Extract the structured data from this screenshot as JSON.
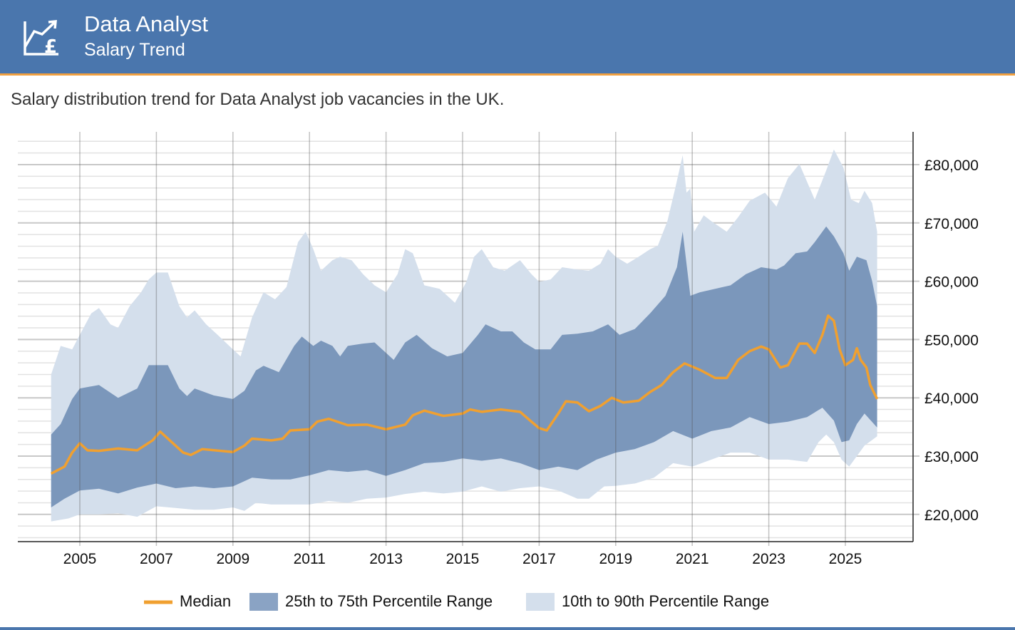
{
  "header": {
    "title": "Data Analyst",
    "subtitle": "Salary Trend",
    "icon": "chart-pound-icon"
  },
  "description": "Salary distribution trend for Data Analyst job vacancies in the UK.",
  "colors": {
    "header": "#4a76ad",
    "accent": "#f0a040",
    "median": "#f0a030",
    "iqr": "#7b97bb",
    "p10_90": "#d4dfec"
  },
  "chart_data": {
    "type": "area",
    "title": "",
    "xlabel": "",
    "ylabel": "",
    "xlim": [
      2003.75,
      2026.75
    ],
    "ylim": [
      15300,
      85600
    ],
    "grid": true,
    "x_ticks": [
      "2005",
      "2007",
      "2009",
      "2011",
      "2013",
      "2015",
      "2017",
      "2019",
      "2021",
      "2023",
      "2025"
    ],
    "y_ticks": [
      "£20,000",
      "£30,000",
      "£40,000",
      "£50,000",
      "£60,000",
      "£70,000",
      "£80,000"
    ],
    "legend_position": "bottom",
    "legend": [
      "Median",
      "25th to 75th Percentile Range",
      "10th to 90th Percentile Range"
    ],
    "series": {
      "median": [
        [
          2004.25,
          27000
        ],
        [
          2004.6,
          28200
        ],
        [
          2004.8,
          30600
        ],
        [
          2005,
          32200
        ],
        [
          2005.2,
          31000
        ],
        [
          2005.5,
          30900
        ],
        [
          2006,
          31300
        ],
        [
          2006.5,
          31000
        ],
        [
          2006.9,
          32700
        ],
        [
          2007.1,
          34200
        ],
        [
          2007.3,
          33000
        ],
        [
          2007.7,
          30600
        ],
        [
          2007.9,
          30200
        ],
        [
          2008.2,
          31200
        ],
        [
          2009,
          30700
        ],
        [
          2009.3,
          31800
        ],
        [
          2009.5,
          33000
        ],
        [
          2010,
          32700
        ],
        [
          2010.3,
          33000
        ],
        [
          2010.5,
          34400
        ],
        [
          2011,
          34600
        ],
        [
          2011.2,
          35900
        ],
        [
          2011.5,
          36400
        ],
        [
          2012,
          35300
        ],
        [
          2012.5,
          35400
        ],
        [
          2013,
          34600
        ],
        [
          2013.5,
          35400
        ],
        [
          2013.7,
          37000
        ],
        [
          2014,
          37800
        ],
        [
          2014.5,
          36900
        ],
        [
          2015,
          37300
        ],
        [
          2015.2,
          38000
        ],
        [
          2015.5,
          37600
        ],
        [
          2016,
          38000
        ],
        [
          2016.5,
          37600
        ],
        [
          2016.8,
          35900
        ],
        [
          2017,
          34800
        ],
        [
          2017.2,
          34400
        ],
        [
          2017.5,
          37300
        ],
        [
          2017.7,
          39400
        ],
        [
          2018,
          39200
        ],
        [
          2018.3,
          37700
        ],
        [
          2018.6,
          38600
        ],
        [
          2018.9,
          40000
        ],
        [
          2019.2,
          39200
        ],
        [
          2019.6,
          39500
        ],
        [
          2019.9,
          41000
        ],
        [
          2020.2,
          42200
        ],
        [
          2020.5,
          44400
        ],
        [
          2020.8,
          45900
        ],
        [
          2021.2,
          44800
        ],
        [
          2021.6,
          43400
        ],
        [
          2021.9,
          43400
        ],
        [
          2022.2,
          46500
        ],
        [
          2022.5,
          48000
        ],
        [
          2022.8,
          48800
        ],
        [
          2023,
          48300
        ],
        [
          2023.3,
          45200
        ],
        [
          2023.5,
          45600
        ],
        [
          2023.8,
          49300
        ],
        [
          2024,
          49300
        ],
        [
          2024.2,
          47700
        ],
        [
          2024.4,
          50800
        ],
        [
          2024.55,
          54100
        ],
        [
          2024.7,
          53200
        ],
        [
          2024.85,
          48300
        ],
        [
          2025,
          45600
        ],
        [
          2025.2,
          46500
        ],
        [
          2025.3,
          48500
        ],
        [
          2025.4,
          46500
        ],
        [
          2025.55,
          45200
        ],
        [
          2025.65,
          42200
        ],
        [
          2025.83,
          39800
        ]
      ],
      "p25": [
        [
          2004.25,
          21200
        ],
        [
          2004.6,
          22700
        ],
        [
          2005,
          24100
        ],
        [
          2005.5,
          24400
        ],
        [
          2006,
          23600
        ],
        [
          2006.5,
          24600
        ],
        [
          2007,
          25300
        ],
        [
          2007.5,
          24500
        ],
        [
          2008,
          24800
        ],
        [
          2008.5,
          24500
        ],
        [
          2009,
          24800
        ],
        [
          2009.5,
          26300
        ],
        [
          2010,
          26000
        ],
        [
          2010.5,
          26000
        ],
        [
          2011,
          26700
        ],
        [
          2011.5,
          27600
        ],
        [
          2012,
          27300
        ],
        [
          2012.5,
          27600
        ],
        [
          2013,
          26600
        ],
        [
          2013.5,
          27600
        ],
        [
          2014,
          28800
        ],
        [
          2014.5,
          29000
        ],
        [
          2015,
          29600
        ],
        [
          2015.5,
          29200
        ],
        [
          2016,
          29600
        ],
        [
          2016.5,
          28800
        ],
        [
          2017,
          27600
        ],
        [
          2017.5,
          28200
        ],
        [
          2018,
          27600
        ],
        [
          2018.5,
          29400
        ],
        [
          2019,
          30600
        ],
        [
          2019.5,
          31200
        ],
        [
          2020,
          32400
        ],
        [
          2020.5,
          34300
        ],
        [
          2021,
          33000
        ],
        [
          2021.5,
          34300
        ],
        [
          2022,
          34900
        ],
        [
          2022.5,
          36700
        ],
        [
          2023,
          35500
        ],
        [
          2023.5,
          35900
        ],
        [
          2024,
          36700
        ],
        [
          2024.4,
          38300
        ],
        [
          2024.7,
          36100
        ],
        [
          2024.9,
          32400
        ],
        [
          2025.1,
          32700
        ],
        [
          2025.3,
          35500
        ],
        [
          2025.5,
          37300
        ],
        [
          2025.83,
          34900
        ]
      ],
      "p75": [
        [
          2004.25,
          33700
        ],
        [
          2004.5,
          35500
        ],
        [
          2004.8,
          39800
        ],
        [
          2005,
          41600
        ],
        [
          2005.5,
          42200
        ],
        [
          2006,
          40000
        ],
        [
          2006.5,
          41600
        ],
        [
          2006.8,
          45600
        ],
        [
          2007,
          45600
        ],
        [
          2007.3,
          45600
        ],
        [
          2007.6,
          41600
        ],
        [
          2007.8,
          40300
        ],
        [
          2008,
          41600
        ],
        [
          2008.5,
          40400
        ],
        [
          2009,
          39800
        ],
        [
          2009.3,
          41200
        ],
        [
          2009.6,
          44700
        ],
        [
          2009.8,
          45500
        ],
        [
          2010.2,
          44400
        ],
        [
          2010.6,
          48900
        ],
        [
          2010.8,
          50500
        ],
        [
          2011.1,
          48900
        ],
        [
          2011.3,
          49800
        ],
        [
          2011.6,
          48900
        ],
        [
          2011.8,
          47100
        ],
        [
          2012,
          48900
        ],
        [
          2012.4,
          49300
        ],
        [
          2012.7,
          49500
        ],
        [
          2013.2,
          46500
        ],
        [
          2013.5,
          49500
        ],
        [
          2013.8,
          50800
        ],
        [
          2014.2,
          48500
        ],
        [
          2014.6,
          47100
        ],
        [
          2015,
          47700
        ],
        [
          2015.4,
          50800
        ],
        [
          2015.6,
          52600
        ],
        [
          2016,
          51400
        ],
        [
          2016.3,
          51400
        ],
        [
          2016.6,
          49500
        ],
        [
          2016.9,
          48300
        ],
        [
          2017.3,
          48300
        ],
        [
          2017.6,
          50800
        ],
        [
          2018,
          51000
        ],
        [
          2018.4,
          51400
        ],
        [
          2018.8,
          52600
        ],
        [
          2019.1,
          50800
        ],
        [
          2019.5,
          51800
        ],
        [
          2019.9,
          54500
        ],
        [
          2020.3,
          57500
        ],
        [
          2020.6,
          62400
        ],
        [
          2020.75,
          68500
        ],
        [
          2020.95,
          57500
        ],
        [
          2021.2,
          58100
        ],
        [
          2021.6,
          58700
        ],
        [
          2022,
          59300
        ],
        [
          2022.4,
          61200
        ],
        [
          2022.8,
          62400
        ],
        [
          2023.2,
          62000
        ],
        [
          2023.4,
          62700
        ],
        [
          2023.7,
          64800
        ],
        [
          2024,
          65100
        ],
        [
          2024.2,
          66700
        ],
        [
          2024.5,
          69400
        ],
        [
          2024.7,
          67700
        ],
        [
          2024.95,
          64800
        ],
        [
          2025.1,
          61800
        ],
        [
          2025.3,
          64200
        ],
        [
          2025.55,
          63600
        ],
        [
          2025.7,
          60000
        ],
        [
          2025.83,
          55700
        ]
      ],
      "p10": [
        [
          2004.25,
          18800
        ],
        [
          2004.7,
          19300
        ],
        [
          2005,
          20000
        ],
        [
          2005.5,
          20000
        ],
        [
          2006,
          20200
        ],
        [
          2006.5,
          19600
        ],
        [
          2007,
          21400
        ],
        [
          2007.5,
          21100
        ],
        [
          2008,
          20800
        ],
        [
          2008.5,
          20800
        ],
        [
          2009,
          21200
        ],
        [
          2009.3,
          20600
        ],
        [
          2009.6,
          22000
        ],
        [
          2010,
          21700
        ],
        [
          2010.5,
          21700
        ],
        [
          2011,
          21700
        ],
        [
          2011.5,
          22300
        ],
        [
          2012,
          22000
        ],
        [
          2012.5,
          22700
        ],
        [
          2013,
          22900
        ],
        [
          2013.5,
          23500
        ],
        [
          2014,
          23900
        ],
        [
          2014.5,
          23600
        ],
        [
          2015,
          23900
        ],
        [
          2015.5,
          24800
        ],
        [
          2016,
          23900
        ],
        [
          2016.5,
          24500
        ],
        [
          2017,
          24800
        ],
        [
          2017.5,
          24100
        ],
        [
          2018,
          22700
        ],
        [
          2018.3,
          22700
        ],
        [
          2018.7,
          24800
        ],
        [
          2019,
          24900
        ],
        [
          2019.5,
          25300
        ],
        [
          2020,
          26300
        ],
        [
          2020.5,
          28800
        ],
        [
          2021,
          28200
        ],
        [
          2021.5,
          29400
        ],
        [
          2022,
          30600
        ],
        [
          2022.5,
          30600
        ],
        [
          2023,
          29400
        ],
        [
          2023.5,
          29400
        ],
        [
          2024,
          29000
        ],
        [
          2024.3,
          32400
        ],
        [
          2024.5,
          33700
        ],
        [
          2024.7,
          32400
        ],
        [
          2024.9,
          29400
        ],
        [
          2025.1,
          28200
        ],
        [
          2025.3,
          30000
        ],
        [
          2025.5,
          31800
        ],
        [
          2025.83,
          33400
        ]
      ],
      "p90": [
        [
          2004.25,
          44000
        ],
        [
          2004.5,
          48900
        ],
        [
          2004.8,
          48300
        ],
        [
          2005,
          50800
        ],
        [
          2005.3,
          54500
        ],
        [
          2005.5,
          55400
        ],
        [
          2005.8,
          52600
        ],
        [
          2006,
          52000
        ],
        [
          2006.3,
          55700
        ],
        [
          2006.6,
          58100
        ],
        [
          2006.8,
          60300
        ],
        [
          2007,
          61500
        ],
        [
          2007.3,
          61500
        ],
        [
          2007.6,
          55700
        ],
        [
          2007.8,
          53800
        ],
        [
          2008,
          55000
        ],
        [
          2008.3,
          52600
        ],
        [
          2008.6,
          50800
        ],
        [
          2009,
          48300
        ],
        [
          2009.2,
          47100
        ],
        [
          2009.5,
          53800
        ],
        [
          2009.8,
          58100
        ],
        [
          2010.1,
          56900
        ],
        [
          2010.4,
          59000
        ],
        [
          2010.7,
          66700
        ],
        [
          2010.9,
          68500
        ],
        [
          2011.1,
          65500
        ],
        [
          2011.3,
          61800
        ],
        [
          2011.6,
          63600
        ],
        [
          2011.8,
          64200
        ],
        [
          2012.1,
          63600
        ],
        [
          2012.4,
          61200
        ],
        [
          2012.7,
          59300
        ],
        [
          2013,
          58100
        ],
        [
          2013.3,
          61200
        ],
        [
          2013.5,
          65500
        ],
        [
          2013.7,
          64800
        ],
        [
          2014,
          59300
        ],
        [
          2014.4,
          58700
        ],
        [
          2014.8,
          56300
        ],
        [
          2015.1,
          59900
        ],
        [
          2015.3,
          64200
        ],
        [
          2015.5,
          65500
        ],
        [
          2015.8,
          62400
        ],
        [
          2016.1,
          61800
        ],
        [
          2016.5,
          63600
        ],
        [
          2016.8,
          61200
        ],
        [
          2017,
          59900
        ],
        [
          2017.3,
          60300
        ],
        [
          2017.6,
          62400
        ],
        [
          2018,
          62000
        ],
        [
          2018.3,
          61800
        ],
        [
          2018.6,
          63000
        ],
        [
          2018.8,
          65500
        ],
        [
          2019,
          64200
        ],
        [
          2019.3,
          63000
        ],
        [
          2019.6,
          64200
        ],
        [
          2019.9,
          65500
        ],
        [
          2020.1,
          66100
        ],
        [
          2020.35,
          70300
        ],
        [
          2020.55,
          75800
        ],
        [
          2020.75,
          81600
        ],
        [
          2020.85,
          75200
        ],
        [
          2020.95,
          75900
        ],
        [
          2021.05,
          68500
        ],
        [
          2021.3,
          71300
        ],
        [
          2021.5,
          70300
        ],
        [
          2021.9,
          68500
        ],
        [
          2022.2,
          71000
        ],
        [
          2022.5,
          73800
        ],
        [
          2022.9,
          75200
        ],
        [
          2023.2,
          72800
        ],
        [
          2023.5,
          77700
        ],
        [
          2023.8,
          80100
        ],
        [
          2024.2,
          74000
        ],
        [
          2024.5,
          79000
        ],
        [
          2024.7,
          82600
        ],
        [
          2024.95,
          79500
        ],
        [
          2025.15,
          74000
        ],
        [
          2025.35,
          73400
        ],
        [
          2025.5,
          75500
        ],
        [
          2025.7,
          73400
        ],
        [
          2025.83,
          68500
        ]
      ]
    }
  }
}
